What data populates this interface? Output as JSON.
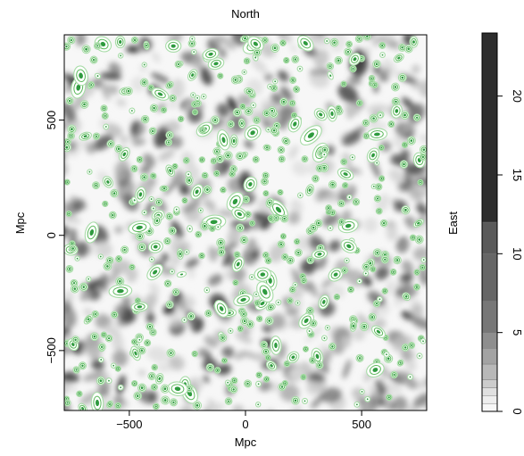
{
  "chart_data": {
    "type": "heatmap",
    "title": "North",
    "xlabel": "Mpc",
    "ylabel": "Mpc",
    "xlim": [
      -780,
      780
    ],
    "ylim": [
      -760,
      870
    ],
    "x_ticks": [
      {
        "value": -500,
        "label": "−500"
      },
      {
        "value": 0,
        "label": "0"
      },
      {
        "value": 500,
        "label": "500"
      }
    ],
    "y_ticks": [
      {
        "value": -500,
        "label": "−500"
      },
      {
        "value": 0,
        "label": "0"
      },
      {
        "value": 500,
        "label": "500"
      }
    ],
    "grid": false,
    "colorbar": {
      "label": "East",
      "range": [
        0,
        24
      ],
      "levels": [
        0,
        0.5,
        1,
        1.5,
        2,
        3,
        4,
        5,
        7,
        10,
        12,
        24
      ],
      "colors": [
        "#f7f7f7",
        "#eeeeee",
        "#e0e0e0",
        "#cccccc",
        "#b8b8b8",
        "#a3a3a3",
        "#8e8e8e",
        "#777777",
        "#666666",
        "#5a5a5a",
        "#2d2d2d"
      ],
      "ticks": [
        {
          "value": 0,
          "label": "0"
        },
        {
          "value": 5,
          "label": "5"
        },
        {
          "value": 10,
          "label": "10"
        },
        {
          "value": 15,
          "label": "15"
        },
        {
          "value": 20,
          "label": "20"
        }
      ]
    },
    "contour_color": "#2e9a3e"
  }
}
